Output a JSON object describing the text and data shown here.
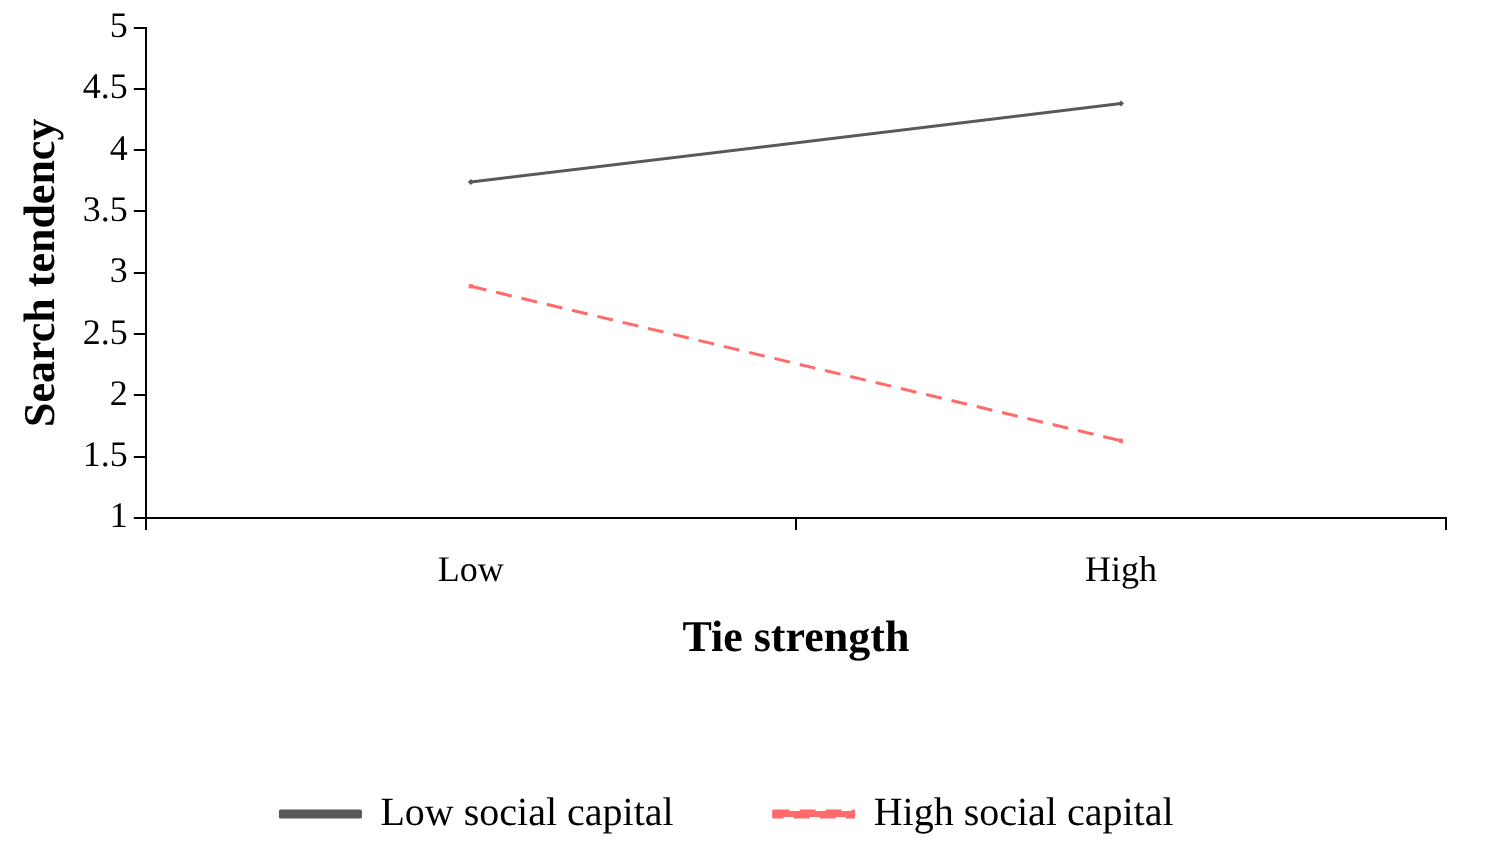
{
  "chart_data": {
    "type": "line",
    "xlabel": "Tie strength",
    "ylabel": "Search tendency",
    "categories": [
      "Low",
      "High"
    ],
    "series": [
      {
        "name": "Low social capital",
        "color": "#595959",
        "values": [
          3.74,
          4.38
        ],
        "marker": "diamond",
        "line_style": "solid"
      },
      {
        "name": "High social capital",
        "color": "#ff6b6b",
        "values": [
          2.89,
          1.63
        ],
        "marker": "square",
        "line_style": "dashed"
      }
    ],
    "ylim": [
      1,
      5
    ],
    "yticks": [
      1,
      1.5,
      2,
      2.5,
      3,
      3.5,
      4,
      4.5,
      5
    ],
    "grid": false,
    "legend": "bottom"
  }
}
